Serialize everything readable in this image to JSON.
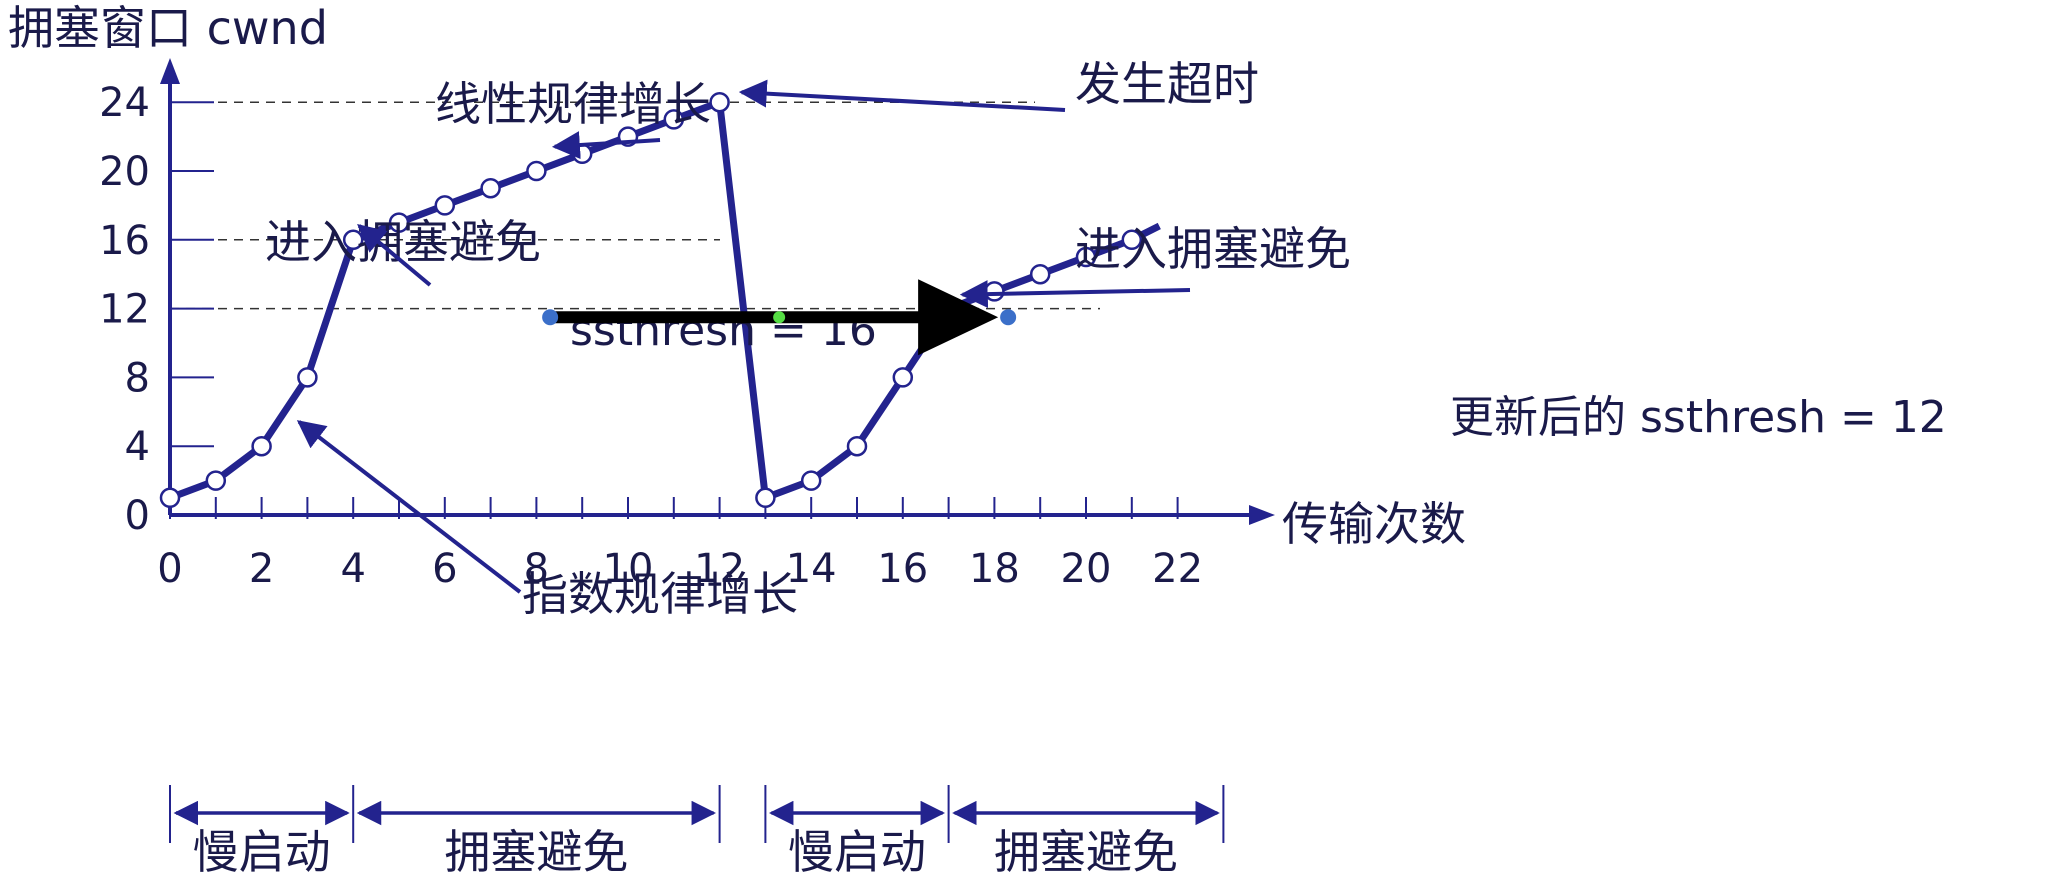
{
  "chart_data": {
    "type": "line",
    "ylabel": "拥塞窗口 cwnd",
    "xlabel": "传输次数",
    "x_ticks": [
      "0",
      "2",
      "4",
      "6",
      "8",
      "10",
      "12",
      "14",
      "16",
      "18",
      "20",
      "22"
    ],
    "y_ticks": [
      "0",
      "4",
      "8",
      "12",
      "16",
      "20",
      "24"
    ],
    "xlim": [
      0,
      23
    ],
    "ylim": [
      0,
      26
    ],
    "reference_lines": [
      {
        "y": 24
      },
      {
        "y": 16,
        "label": "ssthresh = 16"
      },
      {
        "y": 12,
        "label": "更新后的 ssthresh = 12"
      }
    ],
    "series": [
      {
        "points": [
          [
            0,
            1
          ],
          [
            1,
            2
          ],
          [
            2,
            4
          ],
          [
            3,
            8
          ],
          [
            4,
            16
          ],
          [
            5,
            17
          ],
          [
            6,
            18
          ],
          [
            7,
            19
          ],
          [
            8,
            20
          ],
          [
            9,
            21
          ],
          [
            10,
            22
          ],
          [
            11,
            23
          ],
          [
            12,
            24
          ],
          [
            13,
            1
          ],
          [
            14,
            2
          ],
          [
            15,
            4
          ],
          [
            16,
            8
          ],
          [
            17,
            12
          ],
          [
            18,
            13
          ],
          [
            19,
            14
          ],
          [
            20,
            15
          ],
          [
            21,
            16
          ],
          [
            21.6,
            16.8
          ]
        ]
      }
    ],
    "annotations": [
      {
        "text": "发生超时",
        "target": [
          12,
          24
        ]
      },
      {
        "text": "线性规律增长",
        "target": [
          8.4,
          20.6
        ]
      },
      {
        "text": "进入拥塞避免",
        "target": [
          4,
          16
        ]
      },
      {
        "text": "进入拥塞避免",
        "target": [
          17,
          12
        ]
      },
      {
        "text": "指数规律增长",
        "target": [
          2.6,
          6
        ]
      }
    ],
    "phases": [
      {
        "label": "慢启动",
        "from": 0,
        "to": 4
      },
      {
        "label": "拥塞避免",
        "from": 4,
        "to": 12
      },
      {
        "label": "慢启动",
        "from": 13,
        "to": 17
      },
      {
        "label": "拥塞避免",
        "from": 17,
        "to": 23
      }
    ],
    "overlay_arrow": {
      "from": [
        8.3,
        11.5
      ],
      "to": [
        18.3,
        11.5
      ],
      "mid": [
        13.3,
        11.5
      ]
    },
    "colors": {
      "line": "#23238e",
      "text": "#1a1a4a",
      "dash": "#333333",
      "overlay": "#000000",
      "handle": "#3b6fc9",
      "handle_mid": "#55dd44"
    }
  }
}
